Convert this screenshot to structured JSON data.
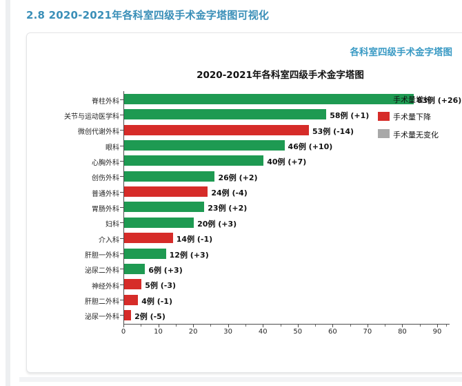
{
  "page": {
    "heading": "2.8 2020-2021年各科室四级手术金字塔图可视化",
    "panel_link": "各科室四级手术金字塔图"
  },
  "chart_data": {
    "type": "bar",
    "orientation": "horizontal",
    "title": "2020-2021年各科室四级手术金字塔图",
    "xlim": [
      0,
      90
    ],
    "x_ticks": [
      0,
      10,
      20,
      30,
      40,
      50,
      60,
      70,
      80,
      90
    ],
    "grid": false,
    "legend_position": "top-right",
    "legend": [
      {
        "label": "手术量增长",
        "trend": "up"
      },
      {
        "label": "手术量下降",
        "trend": "down"
      },
      {
        "label": "手术量无变化",
        "trend": "flat"
      }
    ],
    "colors": {
      "up": "#1e9a52",
      "down": "#d62c29",
      "flat": "#a8a8a8"
    },
    "rows": [
      {
        "category": "脊柱外科",
        "value": 83,
        "label": "83例 (+26)",
        "trend": "up"
      },
      {
        "category": "关节与运动医学科",
        "value": 58,
        "label": "58例 (+1)",
        "trend": "up"
      },
      {
        "category": "微创代谢外科",
        "value": 53,
        "label": "53例 (-14)",
        "trend": "down"
      },
      {
        "category": "眼科",
        "value": 46,
        "label": "46例 (+10)",
        "trend": "up"
      },
      {
        "category": "心胸外科",
        "value": 40,
        "label": "40例 (+7)",
        "trend": "up"
      },
      {
        "category": "创伤外科",
        "value": 26,
        "label": "26例 (+2)",
        "trend": "up"
      },
      {
        "category": "普通外科",
        "value": 24,
        "label": "24例 (-4)",
        "trend": "down"
      },
      {
        "category": "胃肠外科",
        "value": 23,
        "label": "23例 (+2)",
        "trend": "up"
      },
      {
        "category": "妇科",
        "value": 20,
        "label": "20例 (+3)",
        "trend": "up"
      },
      {
        "category": "介入科",
        "value": 14,
        "label": "14例 (-1)",
        "trend": "down"
      },
      {
        "category": "肝胆一外科",
        "value": 12,
        "label": "12例 (+3)",
        "trend": "up"
      },
      {
        "category": "泌尿二外科",
        "value": 6,
        "label": "6例 (+3)",
        "trend": "up"
      },
      {
        "category": "神经外科",
        "value": 5,
        "label": "5例 (-3)",
        "trend": "down"
      },
      {
        "category": "肝胆二外科",
        "value": 4,
        "label": "4例 (-1)",
        "trend": "down"
      },
      {
        "category": "泌尿一外科",
        "value": 2,
        "label": "2例 (-5)",
        "trend": "down"
      }
    ]
  }
}
